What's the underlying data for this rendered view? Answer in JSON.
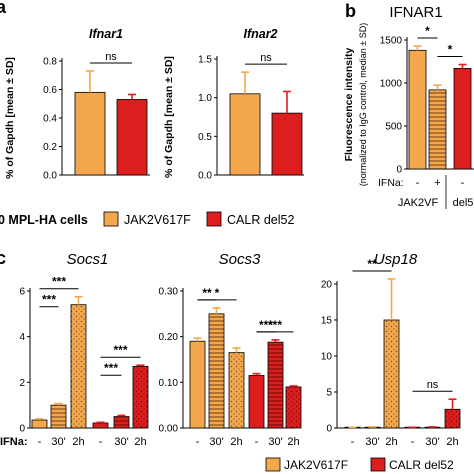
{
  "panels": {
    "a": "a",
    "b": "b",
    "c": "c"
  },
  "colors": {
    "jak2": "#F4A84E",
    "calr": "#DD1E1E",
    "jak2_pattern_line": "#7a4a18",
    "calr_pattern_line": "#7a0a0a"
  },
  "legend": {
    "cells_label": "0 MPL-HA cells",
    "items": [
      {
        "label": "JAK2V617F",
        "color": "#F4A84E"
      },
      {
        "label": "CALR del52",
        "color": "#DD1E1E"
      }
    ],
    "bottom_items": [
      {
        "label": "JAK2V617F",
        "color": "#F4A84E"
      },
      {
        "label": "CALR del52",
        "color": "#DD1E1E"
      }
    ]
  },
  "ifna_label": "IFNa:",
  "chart_data": [
    {
      "id": "ifnar1",
      "type": "bar",
      "title": "Ifnar1",
      "ylabel": "% of Gapdh [mean ± SD]",
      "ylim": [
        0,
        0.8
      ],
      "yticks": [
        "0.0",
        "0.2",
        "0.4",
        "0.6",
        "0.8"
      ],
      "categories": [
        "JAK2V617F",
        "CALR del52"
      ],
      "values": [
        0.58,
        0.53
      ],
      "errors": [
        0.15,
        0.035
      ],
      "annotations": [
        {
          "text": "ns",
          "between": [
            0,
            1
          ]
        }
      ]
    },
    {
      "id": "ifnar2",
      "type": "bar",
      "title": "Ifnar2",
      "ylabel": "% of Gapdh [mean ± SD]",
      "ylim": [
        0,
        1.5
      ],
      "yticks": [
        "0.0",
        "0.5",
        "1.0",
        "1.5"
      ],
      "categories": [
        "JAK2V617F",
        "CALR del52"
      ],
      "values": [
        1.05,
        0.8
      ],
      "errors": [
        0.28,
        0.28
      ],
      "annotations": [
        {
          "text": "ns",
          "between": [
            0,
            1
          ]
        }
      ]
    },
    {
      "id": "ifnar1_flow",
      "type": "bar",
      "title": "IFNAR1",
      "ylabel": "Fluorescence intensity",
      "ylabel2": "(normalized to IgG control, median ± SD)",
      "ylim": [
        0,
        1500
      ],
      "yticks": [
        "0",
        "500",
        "1000",
        "1500"
      ],
      "categories": [
        "-",
        "+",
        "-"
      ],
      "values": [
        1380,
        920,
        1170
      ],
      "errors": [
        50,
        55,
        45
      ],
      "patterns": [
        "solid",
        "hstripe",
        "solid"
      ],
      "series_colors": [
        "jak2",
        "jak2",
        "calr"
      ],
      "group_labels": [
        "JAK2VF",
        "del5"
      ],
      "annotations": [
        {
          "text": "*",
          "between": [
            0,
            1
          ]
        },
        {
          "text": "*",
          "between": [
            1,
            2
          ]
        }
      ]
    },
    {
      "id": "socs1",
      "type": "bar",
      "title": "Socs1",
      "ylabel": "% of Gapdh [mean ± SD]",
      "ylim": [
        0,
        6
      ],
      "yticks": [
        "0",
        "2",
        "4",
        "6"
      ],
      "categories": [
        "-",
        "30'",
        "2h",
        "-",
        "30'",
        "2h"
      ],
      "values": [
        0.35,
        1.0,
        5.4,
        0.22,
        0.5,
        2.7
      ],
      "errors": [
        0.05,
        0.07,
        0.35,
        0.03,
        0.05,
        0.05
      ],
      "patterns": [
        "solid",
        "hstripe",
        "dots",
        "solid",
        "hstripe",
        "dots"
      ],
      "series_colors": [
        "jak2",
        "jak2",
        "jak2",
        "calr",
        "calr",
        "calr"
      ],
      "annotations": [
        {
          "text": "***",
          "between": [
            0,
            2
          ]
        },
        {
          "text": "***",
          "between": [
            0,
            1
          ]
        },
        {
          "text": "***",
          "between": [
            3,
            5
          ]
        },
        {
          "text": "***",
          "between": [
            3,
            4
          ]
        }
      ]
    },
    {
      "id": "socs3",
      "type": "bar",
      "title": "Socs3",
      "ylabel": "",
      "ylim": [
        0,
        0.3
      ],
      "yticks": [
        "0.00",
        "0.10",
        "0.20",
        "0.30"
      ],
      "categories": [
        "-",
        "30'",
        "2h",
        "-",
        "30'",
        "2h"
      ],
      "values": [
        0.19,
        0.25,
        0.165,
        0.115,
        0.188,
        0.09
      ],
      "errors": [
        0.007,
        0.013,
        0.01,
        0.004,
        0.005,
        0.002
      ],
      "patterns": [
        "solid",
        "hstripe",
        "dots",
        "solid",
        "hstripe",
        "dots"
      ],
      "series_colors": [
        "jak2",
        "jak2",
        "jak2",
        "calr",
        "calr",
        "calr"
      ],
      "annotations": [
        {
          "text": "*",
          "between": [
            0,
            2
          ]
        },
        {
          "text": "**",
          "between": [
            0,
            1
          ]
        },
        {
          "text": "***",
          "between": [
            3,
            5
          ]
        },
        {
          "text": "***",
          "between": [
            3,
            4
          ]
        }
      ]
    },
    {
      "id": "usp18",
      "type": "bar",
      "title": "Usp18",
      "ylabel": "",
      "ylim": [
        0,
        20
      ],
      "yticks": [
        "0",
        "5",
        "10",
        "15",
        "20"
      ],
      "categories": [
        "-",
        "30'",
        "2h",
        "-",
        "30'",
        "2h"
      ],
      "values": [
        0.05,
        0.1,
        15.0,
        0.05,
        0.1,
        2.6
      ],
      "errors": [
        0.05,
        0.05,
        5.7,
        0.05,
        0.05,
        1.4
      ],
      "patterns": [
        "solid",
        "hstripe",
        "dots",
        "solid",
        "hstripe",
        "dots"
      ],
      "series_colors": [
        "jak2",
        "jak2",
        "jak2",
        "calr",
        "calr",
        "calr"
      ],
      "annotations": [
        {
          "text": "**",
          "between": [
            0,
            2
          ]
        },
        {
          "text": "ns",
          "between": [
            3,
            5
          ]
        }
      ]
    }
  ]
}
